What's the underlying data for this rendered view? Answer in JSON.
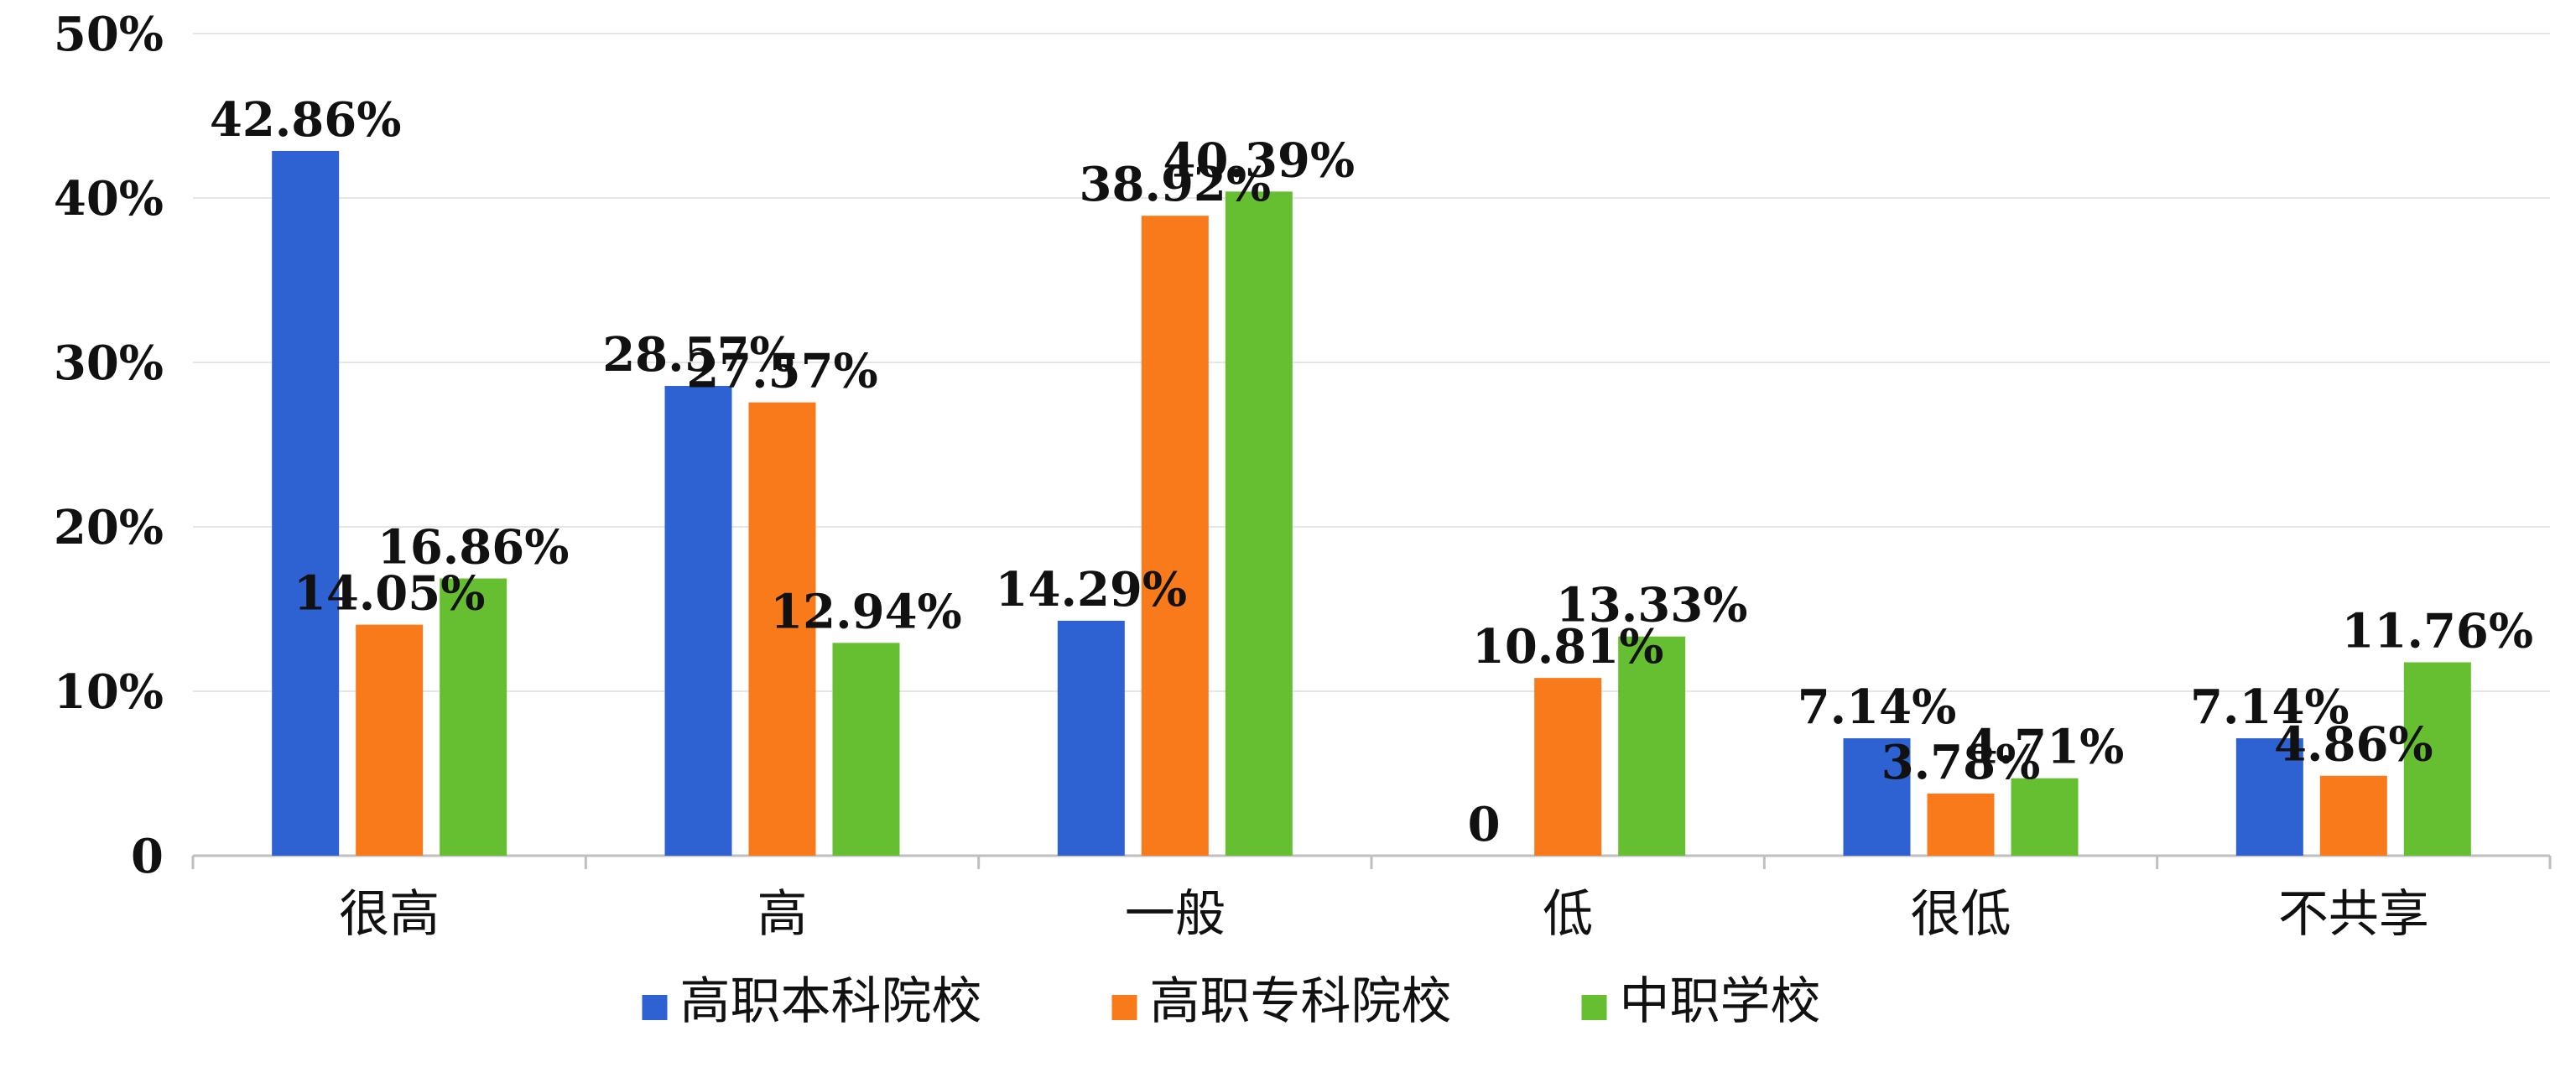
{
  "chart_data": {
    "type": "bar",
    "categories": [
      "很高",
      "高",
      "一般",
      "低",
      "很低",
      "不共享"
    ],
    "series": [
      {
        "name": "高职本科院校",
        "color": "#2e62d2",
        "values": [
          42.86,
          28.57,
          14.29,
          0,
          7.14,
          7.14
        ],
        "labels": [
          "42.86%",
          "28.57%",
          "14.29%",
          "0",
          "7.14%",
          "7.14%"
        ]
      },
      {
        "name": "高职专科院校",
        "color": "#f97a1a",
        "values": [
          14.05,
          27.57,
          38.92,
          10.81,
          3.78,
          4.86
        ],
        "labels": [
          "14.05%",
          "27.57%",
          "38.92%",
          "10.81%",
          "3.78%",
          "4.86%"
        ]
      },
      {
        "name": "中职学校",
        "color": "#66bf30",
        "values": [
          16.86,
          12.94,
          40.39,
          13.33,
          4.71,
          11.76
        ],
        "labels": [
          "16.86%",
          "12.94%",
          "40.39%",
          "13.33%",
          "4.71%",
          "11.76%"
        ]
      }
    ],
    "y_ticks": [
      "0",
      "10%",
      "20%",
      "30%",
      "40%",
      "50%"
    ],
    "ylim": [
      0,
      50
    ],
    "grid": true,
    "legend_position": "bottom",
    "title": "",
    "xlabel": "",
    "ylabel": ""
  }
}
